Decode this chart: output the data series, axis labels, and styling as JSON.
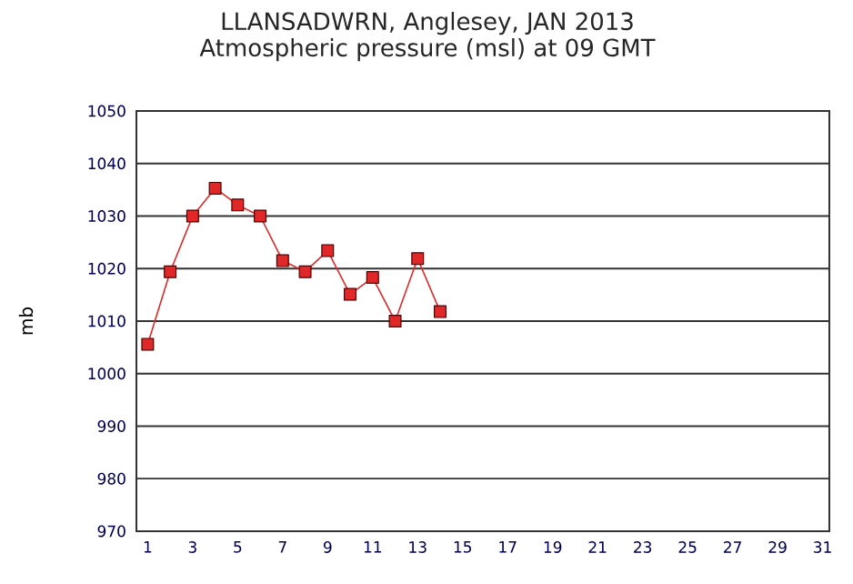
{
  "chart_data": {
    "type": "line",
    "title": "LLANSADWRN, Anglesey,  JAN 2013",
    "subtitle": "Atmospheric pressure  (msl) at 09 GMT",
    "ylabel": "mb",
    "x": [
      1,
      2,
      3,
      4,
      5,
      6,
      7,
      8,
      9,
      10,
      11,
      12,
      13,
      14
    ],
    "series": [
      {
        "color": "#e02828",
        "values": [
          1005.6,
          1019.4,
          1030,
          1035.3,
          1032.1,
          1030,
          1021.5,
          1019.4,
          1023.4,
          1015.1,
          1018.3,
          1010,
          1021.9,
          1011.8
        ]
      }
    ],
    "xlim": [
      0.5,
      31.3
    ],
    "xticks": [
      1,
      3,
      5,
      7,
      9,
      11,
      13,
      15,
      17,
      19,
      21,
      23,
      25,
      27,
      29,
      31
    ],
    "ylim": [
      970,
      1050
    ],
    "yticks": [
      970,
      980,
      990,
      1000,
      1010,
      1020,
      1030,
      1040,
      1050
    ],
    "grid": "y",
    "marker": "square",
    "line_style": "solid"
  }
}
